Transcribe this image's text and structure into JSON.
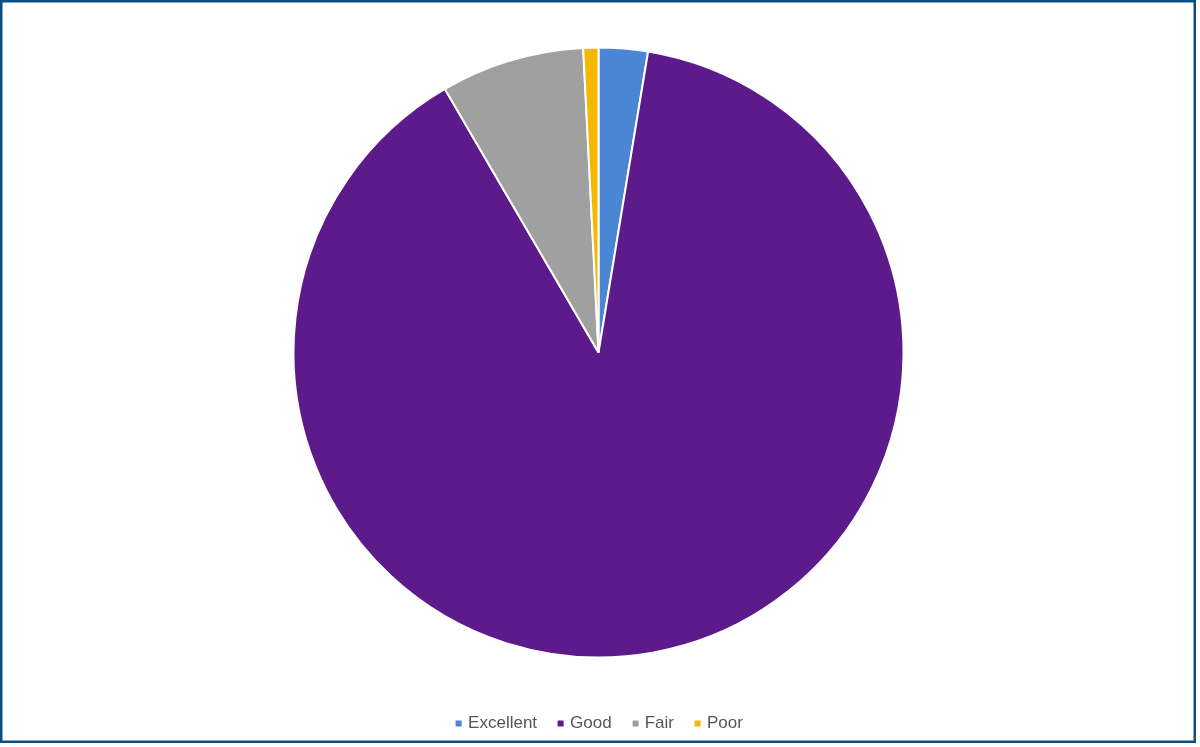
{
  "chart_data": {
    "type": "pie",
    "categories": [
      "Excellent",
      "Good",
      "Fair",
      "Poor"
    ],
    "values": [
      2.6,
      89.0,
      7.6,
      0.8
    ],
    "colors": [
      "#4a86d4",
      "#5c1a8a",
      "#a0a0a0",
      "#f5b800"
    ],
    "legend": "bottom"
  }
}
